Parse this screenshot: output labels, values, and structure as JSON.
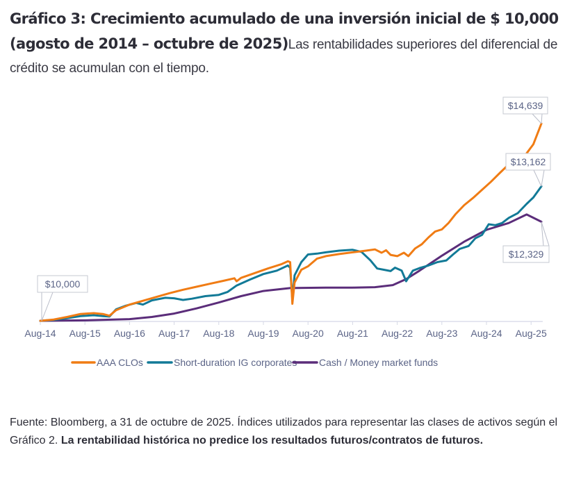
{
  "header": {
    "title": "Gráfico 3: Crecimiento acumulado de una inversión inicial de $ 10,000 (agosto de 2014 – octubre de 2025)",
    "subtitle": "Las rentabilidades superiores del diferencial de crédito se acumulan con el tiempo."
  },
  "footer": {
    "source": "Fuente: Bloomberg, a 31 de octubre de 2025. Índices utilizados para representar las clases de activos según el Gráfico 2. ",
    "disclaimer": "La rentabilidad histórica no predice los resultados futuros/contratos de futuros."
  },
  "chart_data": {
    "type": "line",
    "title": "Gráfico 3: Crecimiento acumulado de una inversión inicial de $ 10,000 (agosto de 2014 – octubre de 2025)",
    "xlabel": "",
    "ylabel": "",
    "grid": false,
    "legend_position": "bottom",
    "x_ticks": [
      "Aug-14",
      "Aug-15",
      "Aug-16",
      "Aug-17",
      "Aug-18",
      "Aug-19",
      "Aug-20",
      "Aug-21",
      "Aug-22",
      "Aug-23",
      "Aug-24",
      "Aug-25"
    ],
    "x_range_years": [
      2014.6,
      2025.83
    ],
    "ylim": [
      10000,
      14800
    ],
    "annotations": [
      {
        "label": "$10,000",
        "series": "start",
        "x": 2014.6,
        "y": 10000
      },
      {
        "label": "$14,639",
        "series": "AAA CLOs",
        "x": 2025.83,
        "y": 14639
      },
      {
        "label": "$13,162",
        "series": "Short-duration IG corporates",
        "x": 2025.83,
        "y": 13162
      },
      {
        "label": "$12,329",
        "series": "Cash / Money market funds",
        "x": 2025.83,
        "y": 12329
      }
    ],
    "series": [
      {
        "name": "AAA CLOs",
        "color": "#f07c14",
        "points": [
          [
            2014.6,
            10000
          ],
          [
            2014.9,
            10030
          ],
          [
            2015.2,
            10090
          ],
          [
            2015.5,
            10160
          ],
          [
            2015.8,
            10180
          ],
          [
            2016.0,
            10160
          ],
          [
            2016.15,
            10120
          ],
          [
            2016.3,
            10250
          ],
          [
            2016.6,
            10380
          ],
          [
            2016.9,
            10470
          ],
          [
            2017.2,
            10560
          ],
          [
            2017.5,
            10650
          ],
          [
            2017.8,
            10730
          ],
          [
            2018.1,
            10800
          ],
          [
            2018.4,
            10870
          ],
          [
            2018.7,
            10940
          ],
          [
            2018.95,
            11000
          ],
          [
            2019.0,
            10930
          ],
          [
            2019.1,
            11010
          ],
          [
            2019.4,
            11120
          ],
          [
            2019.7,
            11230
          ],
          [
            2020.0,
            11330
          ],
          [
            2020.15,
            11400
          ],
          [
            2020.2,
            11380
          ],
          [
            2020.25,
            10400
          ],
          [
            2020.3,
            10900
          ],
          [
            2020.45,
            11200
          ],
          [
            2020.6,
            11280
          ],
          [
            2020.8,
            11460
          ],
          [
            2021.0,
            11520
          ],
          [
            2021.3,
            11570
          ],
          [
            2021.6,
            11610
          ],
          [
            2021.9,
            11650
          ],
          [
            2022.1,
            11680
          ],
          [
            2022.25,
            11600
          ],
          [
            2022.35,
            11660
          ],
          [
            2022.45,
            11550
          ],
          [
            2022.6,
            11520
          ],
          [
            2022.75,
            11600
          ],
          [
            2022.85,
            11520
          ],
          [
            2023.0,
            11700
          ],
          [
            2023.15,
            11800
          ],
          [
            2023.3,
            11960
          ],
          [
            2023.45,
            12100
          ],
          [
            2023.6,
            12150
          ],
          [
            2023.75,
            12300
          ],
          [
            2023.9,
            12500
          ],
          [
            2024.1,
            12720
          ],
          [
            2024.3,
            12890
          ],
          [
            2024.5,
            13080
          ],
          [
            2024.7,
            13270
          ],
          [
            2024.9,
            13480
          ],
          [
            2025.1,
            13680
          ],
          [
            2025.3,
            13870
          ],
          [
            2025.4,
            13890
          ],
          [
            2025.45,
            13820
          ],
          [
            2025.5,
            13940
          ],
          [
            2025.65,
            14150
          ],
          [
            2025.83,
            14639
          ]
        ]
      },
      {
        "name": "Short-duration IG corporates",
        "color": "#127a97",
        "points": [
          [
            2014.6,
            10000
          ],
          [
            2014.9,
            10020
          ],
          [
            2015.2,
            10060
          ],
          [
            2015.5,
            10110
          ],
          [
            2015.8,
            10130
          ],
          [
            2016.0,
            10110
          ],
          [
            2016.15,
            10100
          ],
          [
            2016.3,
            10270
          ],
          [
            2016.5,
            10350
          ],
          [
            2016.75,
            10420
          ],
          [
            2016.9,
            10380
          ],
          [
            2017.1,
            10480
          ],
          [
            2017.4,
            10540
          ],
          [
            2017.6,
            10530
          ],
          [
            2017.8,
            10490
          ],
          [
            2018.0,
            10520
          ],
          [
            2018.3,
            10580
          ],
          [
            2018.6,
            10610
          ],
          [
            2018.8,
            10680
          ],
          [
            2019.0,
            10830
          ],
          [
            2019.3,
            10970
          ],
          [
            2019.6,
            11100
          ],
          [
            2019.9,
            11180
          ],
          [
            2020.15,
            11300
          ],
          [
            2020.2,
            11250
          ],
          [
            2020.25,
            10500
          ],
          [
            2020.3,
            11070
          ],
          [
            2020.45,
            11380
          ],
          [
            2020.6,
            11560
          ],
          [
            2020.8,
            11580
          ],
          [
            2021.0,
            11610
          ],
          [
            2021.3,
            11650
          ],
          [
            2021.6,
            11670
          ],
          [
            2021.8,
            11620
          ],
          [
            2022.0,
            11420
          ],
          [
            2022.15,
            11230
          ],
          [
            2022.3,
            11200
          ],
          [
            2022.45,
            11170
          ],
          [
            2022.55,
            11250
          ],
          [
            2022.7,
            11180
          ],
          [
            2022.8,
            10930
          ],
          [
            2022.95,
            11180
          ],
          [
            2023.1,
            11240
          ],
          [
            2023.3,
            11300
          ],
          [
            2023.5,
            11380
          ],
          [
            2023.7,
            11420
          ],
          [
            2023.85,
            11560
          ],
          [
            2024.0,
            11690
          ],
          [
            2024.2,
            11760
          ],
          [
            2024.35,
            11940
          ],
          [
            2024.5,
            12020
          ],
          [
            2024.65,
            12270
          ],
          [
            2024.8,
            12250
          ],
          [
            2024.95,
            12300
          ],
          [
            2025.1,
            12420
          ],
          [
            2025.3,
            12530
          ],
          [
            2025.5,
            12750
          ],
          [
            2025.65,
            12900
          ],
          [
            2025.83,
            13162
          ]
        ]
      },
      {
        "name": "Cash / Money market funds",
        "color": "#5b2d7a",
        "points": [
          [
            2014.6,
            10000
          ],
          [
            2015.6,
            10010
          ],
          [
            2016.6,
            10040
          ],
          [
            2017.1,
            10090
          ],
          [
            2017.6,
            10170
          ],
          [
            2018.1,
            10290
          ],
          [
            2018.6,
            10430
          ],
          [
            2019.1,
            10580
          ],
          [
            2019.6,
            10700
          ],
          [
            2020.2,
            10770
          ],
          [
            2020.5,
            10775
          ],
          [
            2021.0,
            10780
          ],
          [
            2021.6,
            10780
          ],
          [
            2022.1,
            10790
          ],
          [
            2022.5,
            10840
          ],
          [
            2022.8,
            10980
          ],
          [
            2023.1,
            11180
          ],
          [
            2023.6,
            11530
          ],
          [
            2024.1,
            11860
          ],
          [
            2024.6,
            12140
          ],
          [
            2025.1,
            12300
          ],
          [
            2025.5,
            12500
          ],
          [
            2025.83,
            12329
          ]
        ]
      }
    ]
  }
}
